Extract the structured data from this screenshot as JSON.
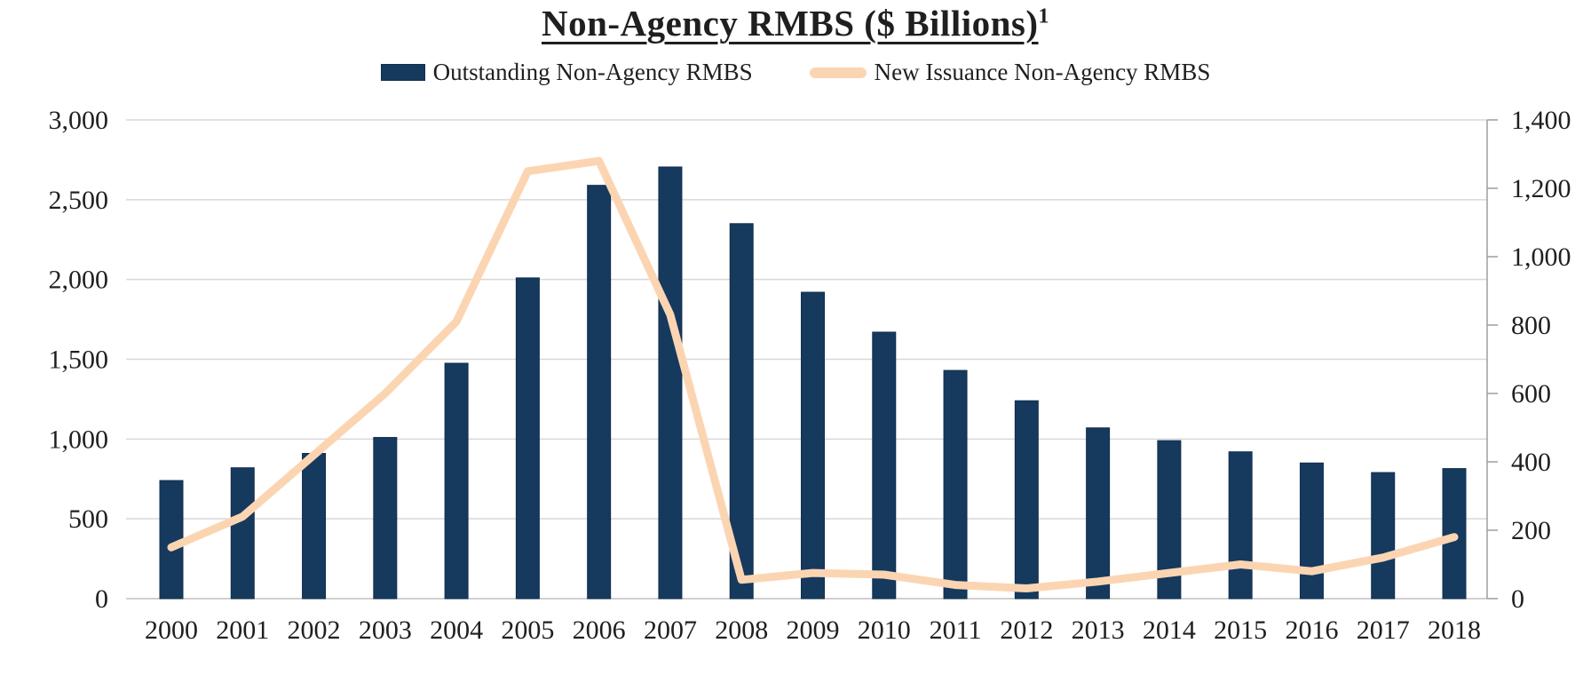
{
  "title": {
    "text": "Non-Agency RMBS ($ Billions)",
    "superscript": "1"
  },
  "legend": [
    {
      "label": "Outstanding Non-Agency RMBS",
      "type": "bar",
      "color": "#16395E"
    },
    {
      "label": "New Issuance Non-Agency RMBS",
      "type": "line",
      "color": "#FBD5B2"
    }
  ],
  "chart_data": {
    "type": "bar+line combo",
    "title": "Non-Agency RMBS ($ Billions)",
    "categories": [
      "2000",
      "2001",
      "2002",
      "2003",
      "2004",
      "2005",
      "2006",
      "2007",
      "2008",
      "2009",
      "2010",
      "2011",
      "2012",
      "2013",
      "2014",
      "2015",
      "2016",
      "2017",
      "2018"
    ],
    "series": [
      {
        "name": "Outstanding Non-Agency RMBS",
        "type": "bar",
        "axis": "left",
        "color": "#16395E",
        "values": [
          740,
          820,
          910,
          1010,
          1475,
          2010,
          2590,
          2705,
          2350,
          1920,
          1670,
          1430,
          1240,
          1070,
          990,
          920,
          850,
          790,
          815
        ]
      },
      {
        "name": "New Issuance Non-Agency RMBS",
        "type": "line",
        "axis": "right",
        "color": "#FBD5B2",
        "values": [
          150,
          240,
          420,
          600,
          810,
          1250,
          1280,
          830,
          55,
          75,
          70,
          40,
          30,
          50,
          75,
          100,
          80,
          120,
          180
        ]
      }
    ],
    "left_axis": {
      "min": 0,
      "max": 3000,
      "step": 500,
      "tick_labels": [
        "0",
        "500",
        "1,000",
        "1,500",
        "2,000",
        "2,500",
        "3,000"
      ]
    },
    "right_axis": {
      "min": 0,
      "max": 1400,
      "step": 200,
      "tick_labels": [
        "0",
        "200",
        "400",
        "600",
        "800",
        "1,000",
        "1,200",
        "1,400"
      ]
    },
    "grid": true,
    "legend_position": "top center",
    "colors": {
      "gridline": "#D8D8D8",
      "baseline": "#C0C0C0",
      "right_axis_line": "#9E9E9E",
      "axis_text": "#1f1f1f"
    }
  }
}
